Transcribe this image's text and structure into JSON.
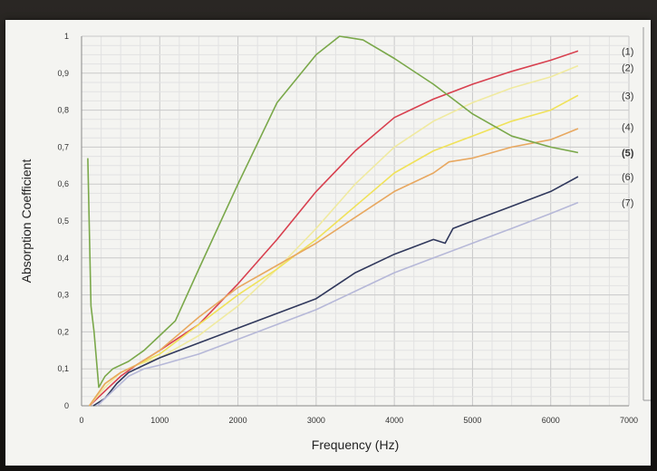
{
  "chart_data": {
    "type": "line",
    "title": "",
    "xlabel": "Frequency (Hz)",
    "ylabel": "Absorption Coefficient",
    "xlim": [
      0,
      7000
    ],
    "ylim": [
      0,
      1
    ],
    "xticks": [
      0,
      1000,
      2000,
      3000,
      4000,
      5000,
      6000,
      7000
    ],
    "yticks": [
      "0",
      "0,1",
      "0,2",
      "0,3",
      "0,4",
      "0,5",
      "0,6",
      "0,7",
      "0,8",
      "0,9",
      "1"
    ],
    "grid": true,
    "legend_placement": "right",
    "series": [
      {
        "name": "(1)",
        "color": "#d8404f",
        "points": [
          [
            100,
            0.0
          ],
          [
            200,
            0.02
          ],
          [
            350,
            0.05
          ],
          [
            500,
            0.08
          ],
          [
            700,
            0.11
          ],
          [
            1000,
            0.15
          ],
          [
            1500,
            0.22
          ],
          [
            2000,
            0.33
          ],
          [
            2500,
            0.45
          ],
          [
            3000,
            0.58
          ],
          [
            3500,
            0.69
          ],
          [
            4000,
            0.78
          ],
          [
            4500,
            0.83
          ],
          [
            5000,
            0.87
          ],
          [
            5500,
            0.905
          ],
          [
            6000,
            0.935
          ],
          [
            6350,
            0.96
          ]
        ]
      },
      {
        "name": "(2)",
        "color": "#f0eaa0",
        "points": [
          [
            100,
            0.0
          ],
          [
            300,
            0.05
          ],
          [
            500,
            0.09
          ],
          [
            700,
            0.11
          ],
          [
            1000,
            0.13
          ],
          [
            1500,
            0.19
          ],
          [
            2000,
            0.27
          ],
          [
            2500,
            0.37
          ],
          [
            3000,
            0.48
          ],
          [
            3500,
            0.6
          ],
          [
            4000,
            0.7
          ],
          [
            4500,
            0.77
          ],
          [
            5000,
            0.82
          ],
          [
            5500,
            0.86
          ],
          [
            6000,
            0.89
          ],
          [
            6350,
            0.92
          ]
        ]
      },
      {
        "name": "(3)",
        "color": "#f0e25a",
        "points": [
          [
            100,
            0.0
          ],
          [
            300,
            0.06
          ],
          [
            500,
            0.09
          ],
          [
            700,
            0.11
          ],
          [
            1000,
            0.14
          ],
          [
            1500,
            0.22
          ],
          [
            2000,
            0.3
          ],
          [
            2500,
            0.37
          ],
          [
            3000,
            0.45
          ],
          [
            3500,
            0.54
          ],
          [
            4000,
            0.63
          ],
          [
            4500,
            0.69
          ],
          [
            5000,
            0.73
          ],
          [
            5500,
            0.77
          ],
          [
            6000,
            0.8
          ],
          [
            6350,
            0.84
          ]
        ]
      },
      {
        "name": "(4)",
        "color": "#e8a860",
        "points": [
          [
            100,
            0.0
          ],
          [
            300,
            0.06
          ],
          [
            500,
            0.09
          ],
          [
            700,
            0.11
          ],
          [
            1000,
            0.15
          ],
          [
            1500,
            0.24
          ],
          [
            2000,
            0.32
          ],
          [
            2500,
            0.38
          ],
          [
            3000,
            0.44
          ],
          [
            3500,
            0.51
          ],
          [
            4000,
            0.58
          ],
          [
            4500,
            0.63
          ],
          [
            4700,
            0.66
          ],
          [
            5000,
            0.67
          ],
          [
            5500,
            0.7
          ],
          [
            6000,
            0.72
          ],
          [
            6350,
            0.75
          ]
        ]
      },
      {
        "name": "(5)",
        "color": "#7aa84a",
        "points": [
          [
            80,
            0.67
          ],
          [
            120,
            0.27
          ],
          [
            160,
            0.2
          ],
          [
            220,
            0.05
          ],
          [
            300,
            0.08
          ],
          [
            400,
            0.1
          ],
          [
            600,
            0.12
          ],
          [
            800,
            0.15
          ],
          [
            1000,
            0.19
          ],
          [
            1200,
            0.23
          ],
          [
            1500,
            0.37
          ],
          [
            2000,
            0.6
          ],
          [
            2500,
            0.82
          ],
          [
            3000,
            0.95
          ],
          [
            3300,
            1.0
          ],
          [
            3600,
            0.99
          ],
          [
            4000,
            0.94
          ],
          [
            4500,
            0.87
          ],
          [
            5000,
            0.79
          ],
          [
            5500,
            0.73
          ],
          [
            6000,
            0.7
          ],
          [
            6350,
            0.685
          ]
        ]
      },
      {
        "name": "(6)",
        "color": "#30385c",
        "points": [
          [
            150,
            0.0
          ],
          [
            300,
            0.02
          ],
          [
            450,
            0.06
          ],
          [
            600,
            0.09
          ],
          [
            800,
            0.11
          ],
          [
            1000,
            0.13
          ],
          [
            1500,
            0.17
          ],
          [
            2000,
            0.21
          ],
          [
            2500,
            0.25
          ],
          [
            3000,
            0.29
          ],
          [
            3500,
            0.36
          ],
          [
            4000,
            0.41
          ],
          [
            4500,
            0.45
          ],
          [
            4650,
            0.44
          ],
          [
            4750,
            0.48
          ],
          [
            5000,
            0.5
          ],
          [
            5500,
            0.54
          ],
          [
            6000,
            0.58
          ],
          [
            6350,
            0.62
          ]
        ]
      },
      {
        "name": "(7)",
        "color": "#b6b8d8",
        "points": [
          [
            200,
            0.0
          ],
          [
            400,
            0.04
          ],
          [
            600,
            0.08
          ],
          [
            800,
            0.1
          ],
          [
            1000,
            0.11
          ],
          [
            1500,
            0.14
          ],
          [
            2000,
            0.18
          ],
          [
            2500,
            0.22
          ],
          [
            3000,
            0.26
          ],
          [
            3500,
            0.31
          ],
          [
            4000,
            0.36
          ],
          [
            4500,
            0.4
          ],
          [
            5000,
            0.44
          ],
          [
            5500,
            0.48
          ],
          [
            6000,
            0.52
          ],
          [
            6350,
            0.55
          ]
        ]
      }
    ]
  }
}
